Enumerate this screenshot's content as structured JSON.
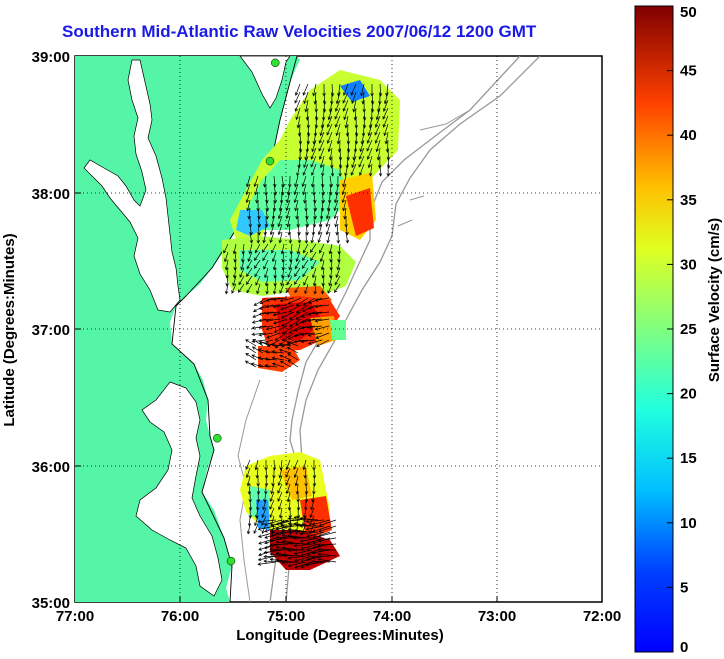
{
  "title": "Southern Mid-Atlantic Raw Velocities 2007/06/12 1200 GMT",
  "map": {
    "xlabel": "Longitude (Degrees:Minutes)",
    "ylabel": "Latitude (Degrees:Minutes)",
    "lon_ticks": [
      "77:00",
      "76:00",
      "75:00",
      "74:00",
      "73:00",
      "72:00"
    ],
    "lat_ticks": [
      "39:00",
      "38:00",
      "37:00",
      "36:00",
      "35:00"
    ],
    "lon_range": [
      -77,
      -72
    ],
    "lat_range": [
      35,
      39
    ],
    "land_color": "#55f5a8",
    "grid": "dotted"
  },
  "colorbar": {
    "label": "Surface Velocity (cm/s)",
    "ticks": [
      "0",
      "5",
      "10",
      "15",
      "20",
      "25",
      "30",
      "35",
      "40",
      "45",
      "50"
    ],
    "range": [
      0,
      50
    ],
    "colormap": "jet"
  },
  "stations": [
    {
      "lon": -75.1,
      "lat": 38.95
    },
    {
      "lon": -75.15,
      "lat": 38.23
    },
    {
      "lon": -75.65,
      "lat": 36.2
    },
    {
      "lon": -75.52,
      "lat": 35.3
    }
  ]
}
